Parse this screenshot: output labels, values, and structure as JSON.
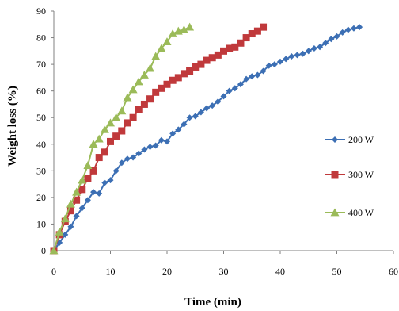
{
  "chart_data": {
    "type": "line",
    "title": "",
    "xlabel": "Time (min)",
    "ylabel": "Weight loss (%)",
    "xlim": [
      0,
      60
    ],
    "ylim": [
      0,
      90
    ],
    "x_ticks": [
      "0",
      "10",
      "20",
      "30",
      "40",
      "50",
      "60"
    ],
    "y_ticks": [
      "0",
      "10",
      "20",
      "30",
      "40",
      "50",
      "60",
      "70",
      "80",
      "90"
    ],
    "grid": false,
    "legend_position": "right",
    "series": [
      {
        "name": "200 W",
        "color": "#3c6fb4",
        "marker": "diamond",
        "x": [
          0,
          1,
          2,
          3,
          4,
          5,
          6,
          7,
          8,
          9,
          10,
          11,
          12,
          13,
          14,
          15,
          16,
          17,
          18,
          19,
          20,
          21,
          22,
          23,
          24,
          25,
          26,
          27,
          28,
          29,
          30,
          31,
          32,
          33,
          34,
          35,
          36,
          37,
          38,
          39,
          40,
          41,
          42,
          43,
          44,
          45,
          46,
          47,
          48,
          49,
          50,
          51,
          52,
          53,
          54
        ],
        "y": [
          0,
          3,
          6,
          9,
          13,
          16,
          19,
          22,
          21.5,
          25.5,
          26.5,
          30,
          33,
          34.5,
          35,
          36.5,
          38,
          39,
          39.5,
          41.5,
          41,
          44,
          45.5,
          47.5,
          50,
          50.5,
          52,
          53.5,
          54.5,
          56,
          58,
          60,
          61,
          62.5,
          64.5,
          65.5,
          66,
          67.5,
          69.5,
          70,
          71,
          72,
          73,
          73.5,
          74,
          75,
          76,
          76.5,
          78,
          79.5,
          80.5,
          82,
          83,
          83.5,
          84
        ]
      },
      {
        "name": "300 W",
        "color": "#c0393b",
        "marker": "square",
        "x": [
          0,
          1,
          2,
          3,
          4,
          5,
          6,
          7,
          8,
          9,
          10,
          11,
          12,
          13,
          14,
          15,
          16,
          17,
          18,
          19,
          20,
          21,
          22,
          23,
          24,
          25,
          26,
          27,
          28,
          29,
          30,
          31,
          32,
          33,
          34,
          35,
          36,
          37
        ],
        "y": [
          0,
          6,
          11,
          15,
          19,
          23,
          27,
          30,
          35,
          37,
          41,
          43,
          45,
          48,
          50,
          53,
          55,
          57,
          59.5,
          61,
          62.5,
          64,
          65,
          66.5,
          67.5,
          69,
          70,
          71.5,
          72.5,
          73.5,
          75,
          76,
          76.5,
          78,
          80,
          81.5,
          82.5,
          84
        ]
      },
      {
        "name": "400 W",
        "color": "#9bbb59",
        "marker": "triangle",
        "x": [
          0,
          1,
          2,
          3,
          4,
          5,
          6,
          7,
          8,
          9,
          10,
          11,
          12,
          13,
          14,
          15,
          16,
          17,
          18,
          19,
          20,
          21,
          22,
          23,
          24
        ],
        "y": [
          0,
          7,
          12,
          17.5,
          22,
          26.5,
          32,
          40,
          42,
          45.5,
          48,
          50,
          52.5,
          57.5,
          60.5,
          63.5,
          66,
          68.5,
          73,
          76,
          78.5,
          81.5,
          82.5,
          83,
          84
        ]
      }
    ]
  }
}
